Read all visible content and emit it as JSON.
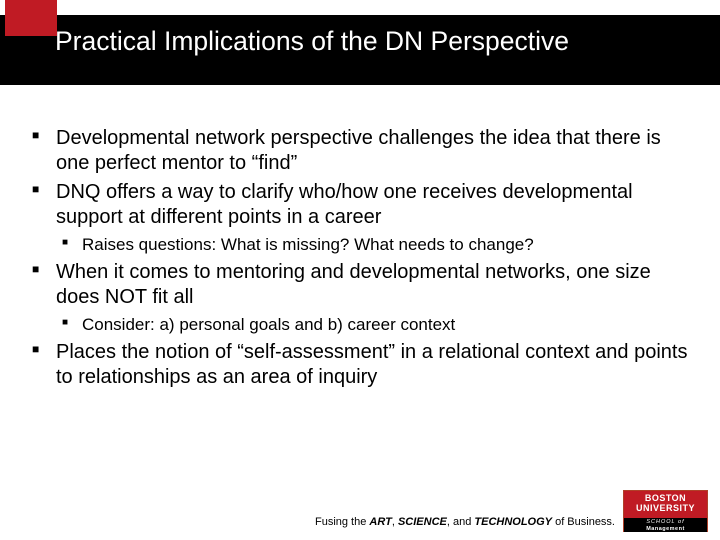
{
  "title": "Practical Implications of the DN Perspective",
  "bullets": {
    "b1": "Developmental network perspective challenges the idea that there is one perfect mentor to “find”",
    "b2": "DNQ offers a way to clarify who/how one receives developmental support at different points in a career",
    "b2a": "Raises questions: What is missing?  What needs to change?",
    "b3": "When it comes to mentoring and developmental networks, one size does NOT fit all",
    "b3a": "Consider:  a) personal goals and b) career context",
    "b4": "Places the notion of “self-assessment” in a relational context and  points to relationships as an area of inquiry"
  },
  "footer": {
    "pre1": "Fusing the ",
    "w1": "ART",
    "sep1": ", ",
    "w2": "SCIENCE",
    "sep2": ", and ",
    "w3": "TECHNOLOGY",
    "post": " of Business."
  },
  "logo": {
    "line1": "BOSTON",
    "line2": "UNIVERSITY",
    "line3": "SCHOOL of",
    "line4": "Management"
  }
}
